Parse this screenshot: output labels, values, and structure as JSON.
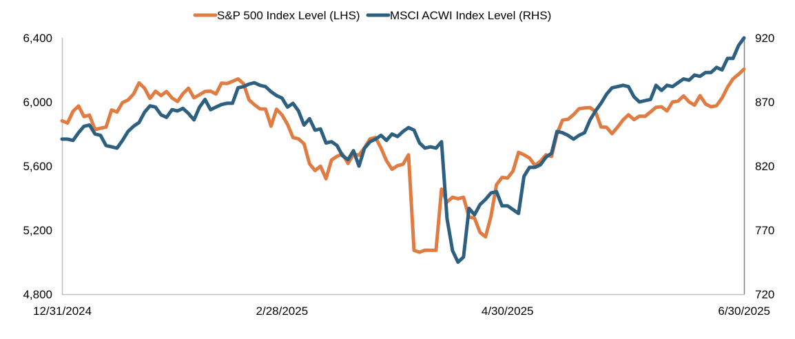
{
  "chart_data": {
    "type": "line",
    "title": "",
    "legend_position": "top-center",
    "x_tick_labels": [
      "12/31/2024",
      "2/28/2025",
      "4/30/2025",
      "6/30/2025"
    ],
    "x_tick_index": [
      0,
      40,
      81,
      123
    ],
    "y_left": {
      "label": "",
      "ticks": [
        "6,400",
        "6,000",
        "5,600",
        "5,200",
        "4,800"
      ],
      "tick_values": [
        6400,
        6000,
        5600,
        5200,
        4800
      ],
      "range": [
        4800,
        6400
      ]
    },
    "y_right": {
      "label": "",
      "ticks": [
        "920",
        "870",
        "820",
        "770",
        "720"
      ],
      "tick_values": [
        920,
        870,
        820,
        770,
        720
      ],
      "range": [
        720,
        920
      ]
    },
    "grid": false,
    "series": [
      {
        "name": "S&P 500 Index Level (LHS)",
        "axis": "left",
        "color": "#E07B42",
        "values": [
          5882,
          5869,
          5942,
          5975,
          5909,
          5918,
          5827,
          5836,
          5843,
          5950,
          5937,
          5996,
          6012,
          6049,
          6119,
          6086,
          6022,
          6067,
          6040,
          6066,
          6025,
          6003,
          6052,
          6086,
          6026,
          6045,
          6066,
          6068,
          6050,
          6118,
          6115,
          6129,
          6144,
          6114,
          6013,
          5983,
          5957,
          5956,
          5849,
          5955,
          5919,
          5861,
          5778,
          5770,
          5739,
          5614,
          5572,
          5599,
          5521,
          5638,
          5661,
          5675,
          5616,
          5675,
          5668,
          5713,
          5770,
          5778,
          5712,
          5633,
          5580,
          5602,
          5611,
          5670,
          5074,
          5062,
          5075,
          5074,
          5074,
          5456,
          5375,
          5405,
          5396,
          5405,
          5282,
          5275,
          5186,
          5158,
          5287,
          5484,
          5529,
          5525,
          5569,
          5686,
          5670,
          5650,
          5604,
          5631,
          5670,
          5660,
          5801,
          5887,
          5892,
          5921,
          5958,
          5963,
          5965,
          5940,
          5844,
          5842,
          5802,
          5843,
          5888,
          5920,
          5890,
          5912,
          5910,
          5938,
          5967,
          5970,
          5944,
          6000,
          6005,
          6038,
          6001,
          5980,
          6039,
          5988,
          5970,
          5977,
          6025,
          6092,
          6144,
          6173,
          6205
        ]
      },
      {
        "name": "MSCI ACWI Index Level (RHS)",
        "axis": "right",
        "color": "#2C5F80",
        "values": [
          841,
          841,
          840,
          846,
          851,
          852,
          845,
          844,
          836,
          835,
          834,
          840,
          847,
          851,
          854,
          862,
          867,
          866,
          860,
          858,
          864,
          863,
          865,
          861,
          856,
          866,
          872,
          864,
          866,
          868,
          869,
          869,
          881,
          882,
          884,
          885,
          883,
          882,
          878,
          875,
          873,
          866,
          869,
          863,
          852,
          857,
          848,
          849,
          838,
          839,
          836,
          828,
          825,
          832,
          820,
          834,
          839,
          841,
          844,
          840,
          845,
          843,
          847,
          850,
          848,
          838,
          834,
          835,
          834,
          839,
          779,
          754,
          745,
          749,
          787,
          782,
          790,
          794,
          799,
          800,
          789,
          789,
          786,
          783,
          812,
          819,
          819,
          821,
          827,
          830,
          847,
          846,
          844,
          841,
          844,
          846,
          856,
          863,
          869,
          876,
          881,
          882,
          883,
          882,
          874,
          870,
          871,
          872,
          883,
          879,
          883,
          882,
          885,
          888,
          887,
          891,
          890,
          893,
          893,
          897,
          895,
          904,
          904,
          914,
          920
        ]
      }
    ]
  }
}
